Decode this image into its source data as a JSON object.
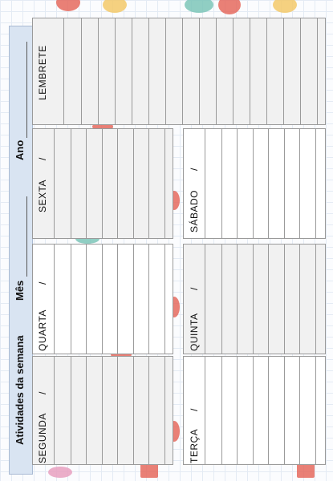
{
  "header": {
    "title": "Atividades da semana",
    "month_label": "Mês",
    "year_label": "Ano"
  },
  "reminder": {
    "label": "LEMBRETE"
  },
  "days": [
    {
      "id": "sexta",
      "label": "SEXTA",
      "slash": "/"
    },
    {
      "id": "sabado",
      "label": "SÁBADO",
      "slash": "/"
    },
    {
      "id": "quarta",
      "label": "QUARTA",
      "slash": "/"
    },
    {
      "id": "quinta",
      "label": "QUINTA",
      "slash": "/"
    },
    {
      "id": "segunda",
      "label": "SEGUNDA",
      "slash": "/"
    },
    {
      "id": "terca",
      "label": "TERÇA",
      "slash": "/"
    }
  ],
  "colors": {
    "title_band": "#d9e4f2",
    "panel_gray": "#f1f1f1",
    "panel_white": "#ffffff",
    "doodle_red": "#e56a5e",
    "doodle_teal": "#7cc6b8",
    "doodle_yellow": "#f3c96a",
    "doodle_pink": "#e8a0c0"
  },
  "decorations": [
    "sun-doodle",
    "cloud-doodle",
    "girl-doodle",
    "heart-doodle",
    "flower-doodle",
    "house-doodle"
  ]
}
